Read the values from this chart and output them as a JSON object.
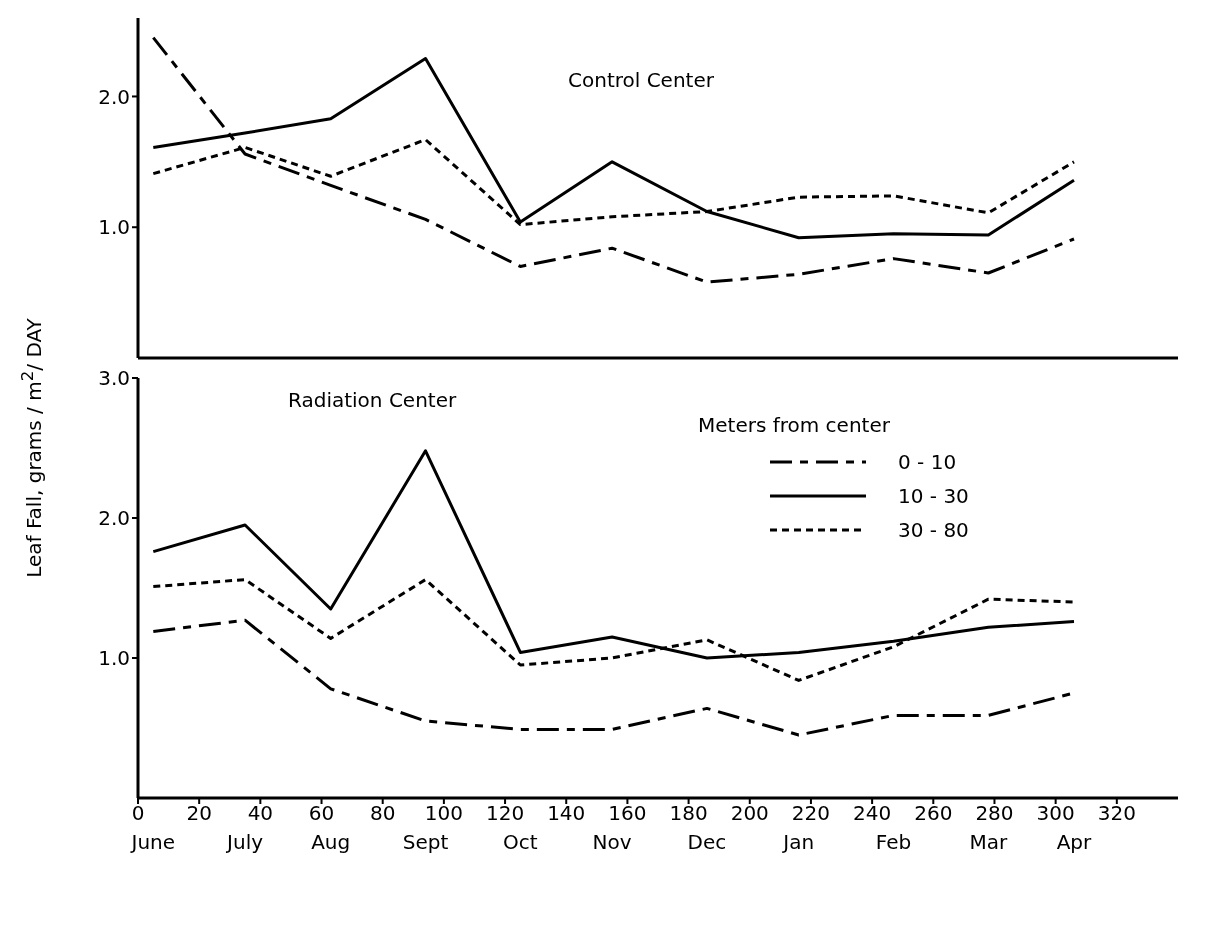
{
  "chart_data": [
    {
      "type": "line",
      "title": "Control Center",
      "ylabel": "Leaf Fall, grams / m$^{2}$/ DAY",
      "x": [
        5,
        35,
        63,
        94,
        125,
        155,
        186,
        216,
        247,
        278,
        306
      ],
      "series": [
        {
          "color": "#000000",
          "line_style": "dashed",
          "values": [
            2.45,
            1.56,
            1.32,
            1.06,
            0.7,
            0.84,
            0.58,
            0.64,
            0.76,
            0.65,
            0.91
          ]
        },
        {
          "color": "#000000",
          "line_style": "solid",
          "values": [
            1.61,
            1.72,
            1.83,
            2.29,
            1.04,
            1.5,
            1.12,
            0.92,
            0.95,
            0.94,
            1.36
          ]
        },
        {
          "color": "#000000",
          "line_style": "dotted",
          "values": [
            1.41,
            1.61,
            1.39,
            1.67,
            1.02,
            1.08,
            1.12,
            1.23,
            1.24,
            1.11,
            1.5
          ]
        }
      ],
      "xlim": [
        0,
        340
      ],
      "xticks": [
        0,
        20,
        40,
        60,
        80,
        100,
        120,
        140,
        160,
        180,
        200,
        220,
        240,
        260,
        280,
        300,
        320
      ],
      "ylim": [
        0,
        2.6
      ],
      "yticks": [
        {
          "value": 1,
          "label": "1.0"
        },
        {
          "value": 2,
          "label": "2.0"
        }
      ],
      "tick_labels": "y",
      "grid": false,
      "legend": false
    },
    {
      "type": "line",
      "title": "Radiation Center",
      "legend_title": "Meters from center",
      "x": [
        5,
        35,
        63,
        94,
        125,
        155,
        186,
        216,
        247,
        278,
        306
      ],
      "series": [
        {
          "name": "0 - 10",
          "color": "#000000",
          "line_style": "dashed",
          "values": [
            1.19,
            1.27,
            0.78,
            0.55,
            0.49,
            0.49,
            0.64,
            0.45,
            0.59,
            0.59,
            0.75
          ]
        },
        {
          "name": "10 - 30",
          "color": "#000000",
          "line_style": "solid",
          "values": [
            1.76,
            1.95,
            1.35,
            2.48,
            1.04,
            1.15,
            1.0,
            1.04,
            1.12,
            1.22,
            1.26
          ]
        },
        {
          "name": "30 - 80",
          "color": "#000000",
          "line_style": "dotted",
          "values": [
            1.51,
            1.56,
            1.14,
            1.56,
            0.95,
            1.0,
            1.13,
            0.84,
            1.08,
            1.42,
            1.4
          ]
        }
      ],
      "xlim": [
        0,
        340
      ],
      "xticks": [
        0,
        20,
        40,
        60,
        80,
        100,
        120,
        140,
        160,
        180,
        200,
        220,
        240,
        260,
        280,
        300,
        320
      ],
      "ylim": [
        0,
        3
      ],
      "yticks": [
        {
          "value": 1,
          "label": "1.0"
        },
        {
          "value": 2,
          "label": "2.0"
        },
        {
          "value": 3,
          "label": "3.0"
        }
      ],
      "grid": false,
      "legend": "right",
      "annotations": [
        "June",
        "July",
        "Aug",
        "Sept",
        "Oct",
        "Nov",
        "Dec",
        "Jan",
        "Feb",
        "Mar",
        "Apr"
      ]
    }
  ]
}
